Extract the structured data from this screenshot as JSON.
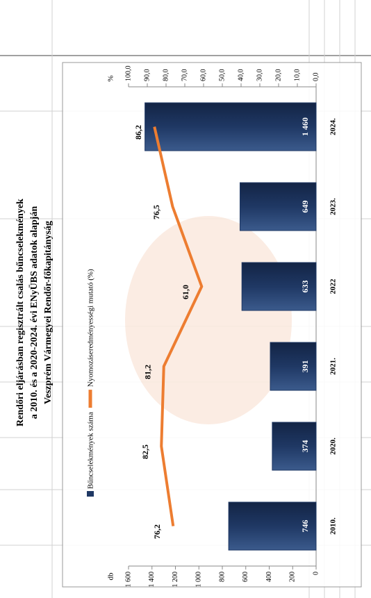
{
  "chart_data": {
    "type": "bar_line",
    "title": [
      "Rendőri eljárásban regisztrált csalás bűncselekmények",
      "a 2010. és a 2020-2024. évi ENyÜBS adatok alapján",
      "Veszprém Vármegyei Rendőr-főkapitányság"
    ],
    "y_label": "db",
    "y2_label": "%",
    "categories": [
      "2010.",
      "2020.",
      "2021.",
      "2022",
      "2023.",
      "2024."
    ],
    "series": [
      {
        "name": "Bűncselekmények száma",
        "type": "bar",
        "color": "#1f3864",
        "values": [
          746,
          374,
          391,
          633,
          649,
          1460
        ],
        "value_labels": [
          "746",
          "374",
          "391",
          "633",
          "649",
          "1 460"
        ]
      },
      {
        "name": "Nyomozáseredményességi mutató (%)",
        "type": "line",
        "axis": "y2",
        "color": "#ed7d31",
        "values": [
          76.2,
          82.5,
          81.2,
          61.0,
          76.5,
          86.2
        ],
        "value_labels": [
          "76,2",
          "82,5",
          "81,2",
          "61,0",
          "76,5",
          "86,2"
        ]
      }
    ],
    "ylim": [
      0,
      1600
    ],
    "yticks": [
      0,
      200,
      400,
      600,
      800,
      {
        "value": 1000,
        "label": "1 000"
      },
      {
        "value": 1200,
        "label": "1 200"
      },
      {
        "value": 1400,
        "label": "1 400"
      },
      {
        "value": 1600,
        "label": "1 600"
      }
    ],
    "y2lim": [
      0,
      100
    ],
    "y2ticks": [
      {
        "value": 0,
        "label": "0,0"
      },
      {
        "value": 10,
        "label": "10,0"
      },
      {
        "value": 20,
        "label": "20,0"
      },
      {
        "value": 30,
        "label": "30,0"
      },
      {
        "value": 40,
        "label": "40,0"
      },
      {
        "value": 50,
        "label": "50,0"
      },
      {
        "value": 60,
        "label": "60,0"
      },
      {
        "value": 70,
        "label": "70,0"
      },
      {
        "value": 80,
        "label": "80,0"
      },
      {
        "value": 90,
        "label": "90,0"
      },
      {
        "value": 100,
        "label": "100,0"
      }
    ],
    "legend": "top"
  }
}
